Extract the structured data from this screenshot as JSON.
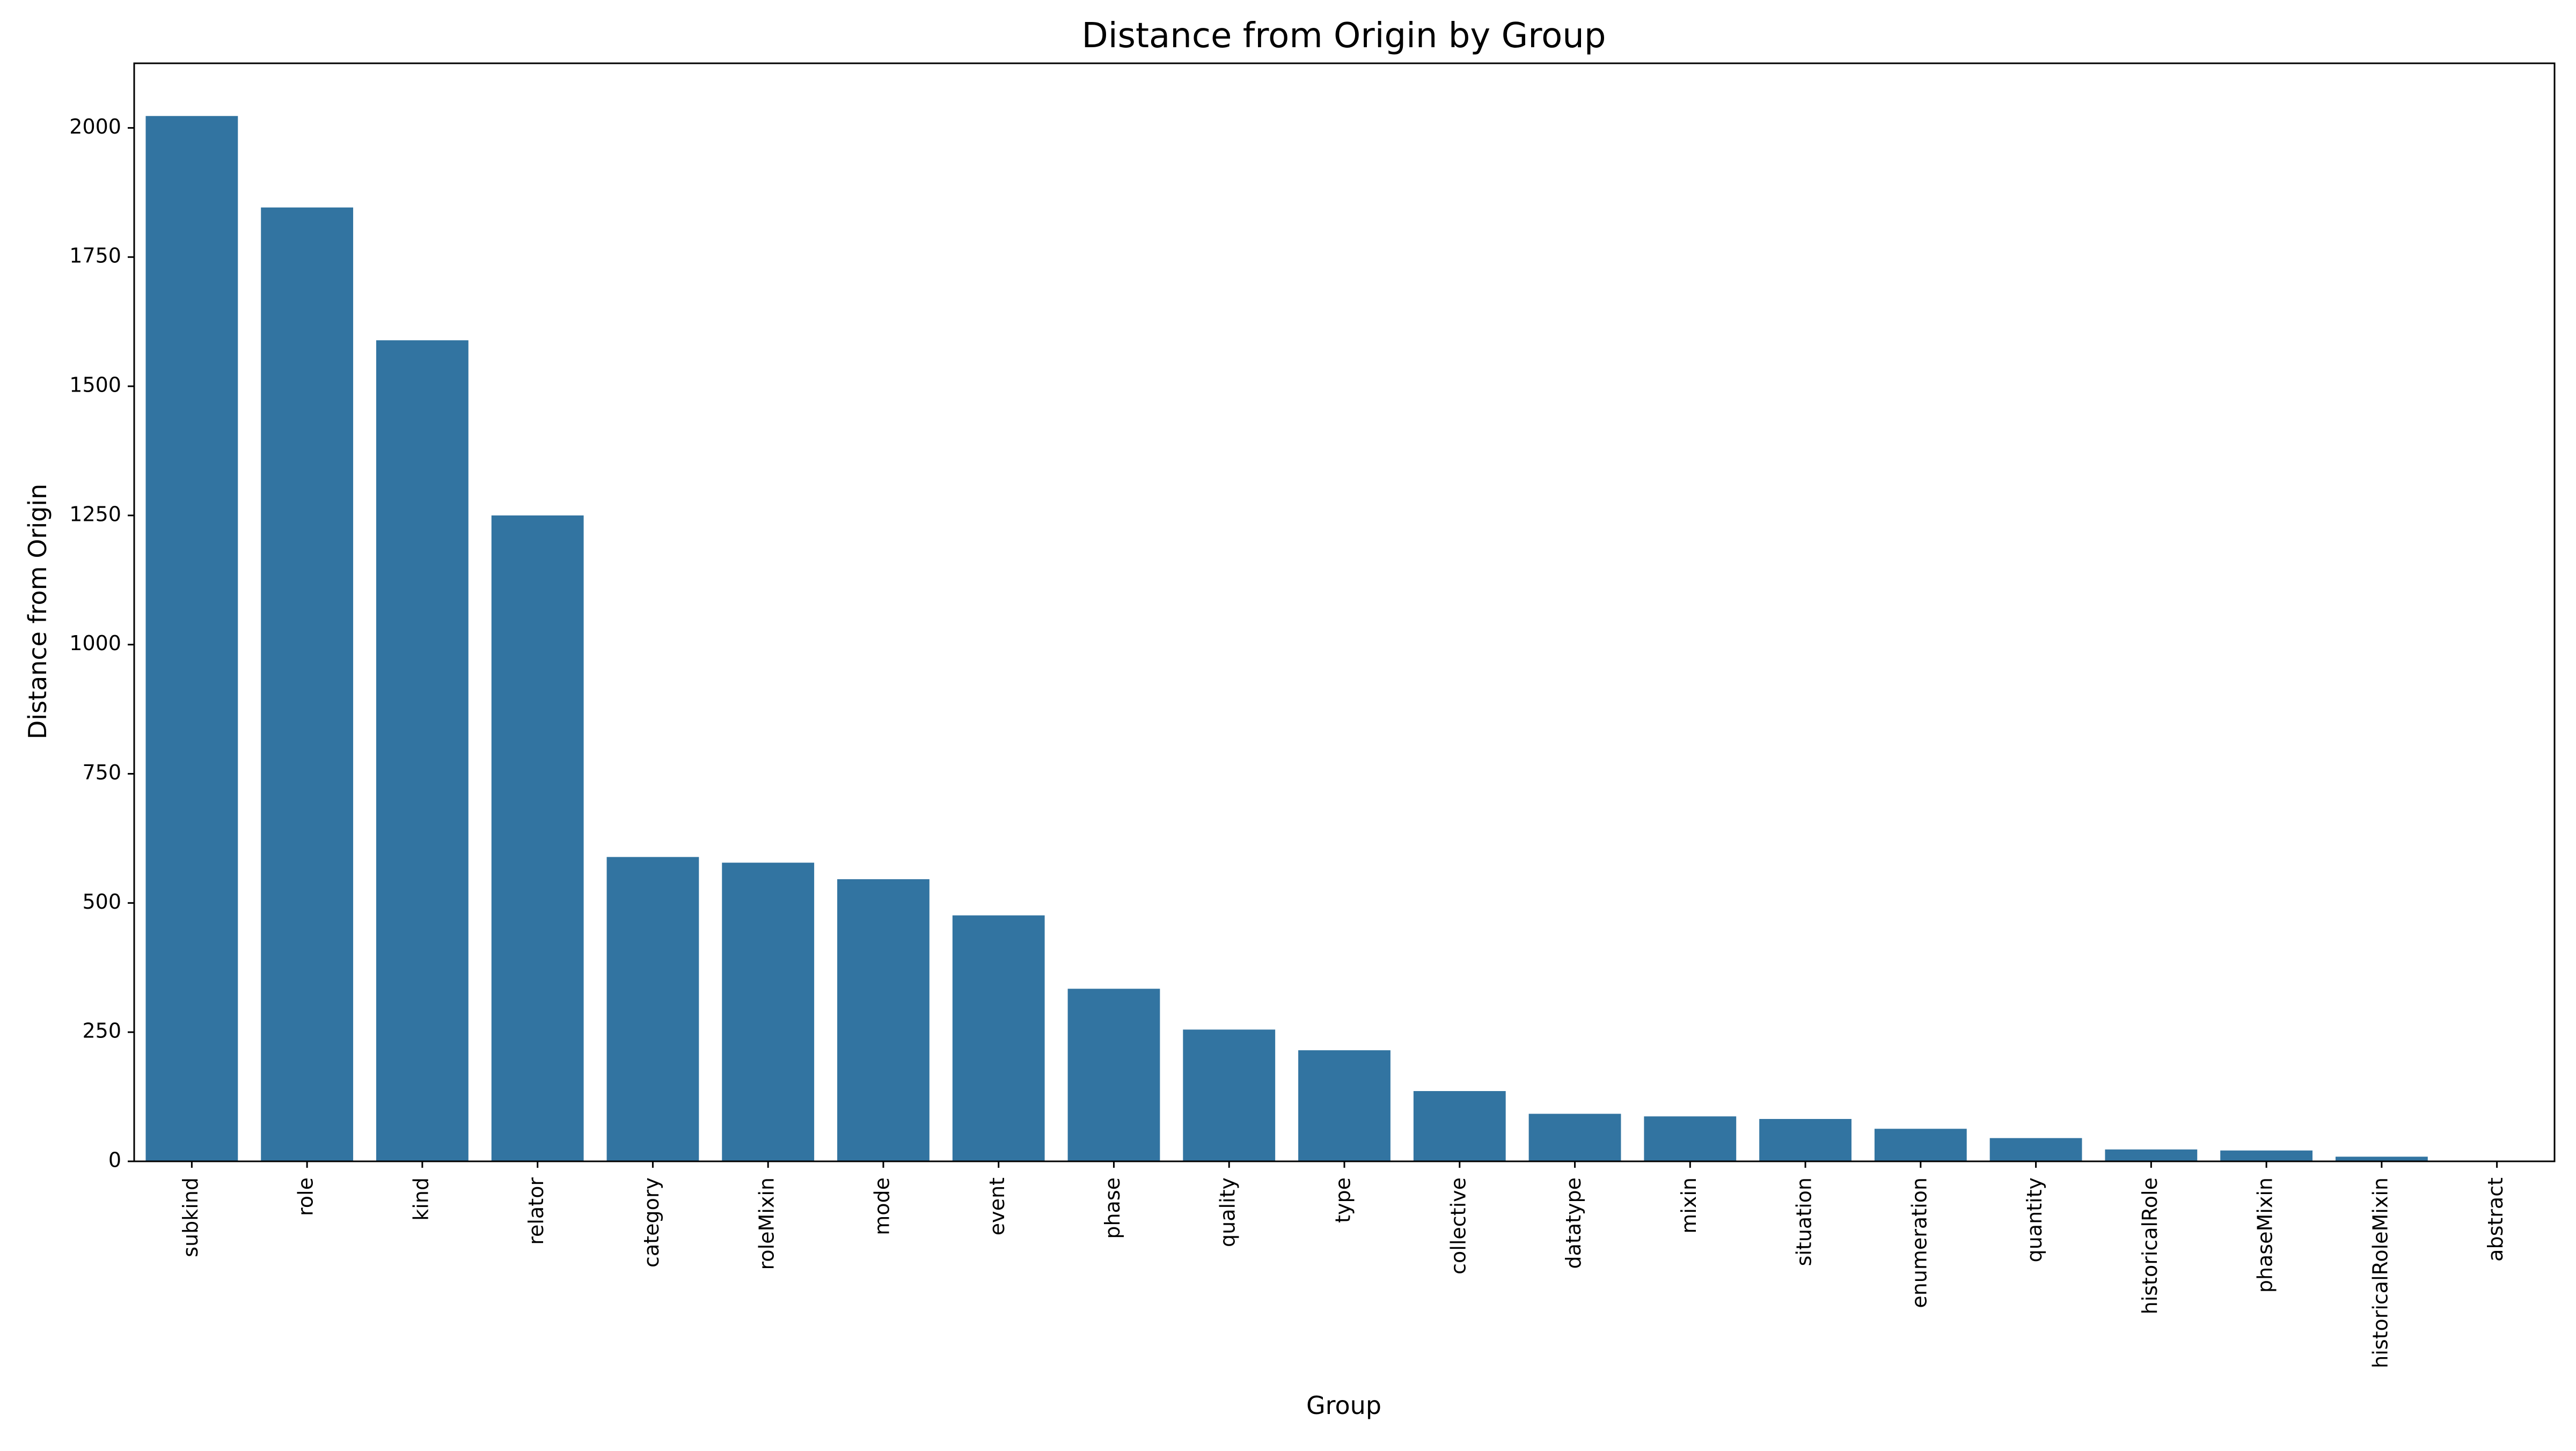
{
  "chart_data": {
    "type": "bar",
    "title": "Distance from Origin by Group",
    "xlabel": "Group",
    "ylabel": "Distance from Origin",
    "categories": [
      "subkind",
      "role",
      "kind",
      "relator",
      "category",
      "roleMixin",
      "mode",
      "event",
      "phase",
      "quality",
      "type",
      "collective",
      "datatype",
      "mixin",
      "situation",
      "enumeration",
      "quantity",
      "historicalRole",
      "phaseMixin",
      "historicalRoleMixin",
      "abstract"
    ],
    "values": [
      2023,
      1846,
      1589,
      1250,
      589,
      578,
      546,
      476,
      334,
      255,
      215,
      136,
      92,
      87,
      82,
      63,
      45,
      23,
      21,
      9,
      1
    ],
    "ylim": [
      0,
      2125
    ],
    "yticks": [
      0,
      250,
      500,
      750,
      1000,
      1250,
      1500,
      1750,
      2000
    ],
    "grid": false,
    "bar_color": "#3274a1"
  }
}
